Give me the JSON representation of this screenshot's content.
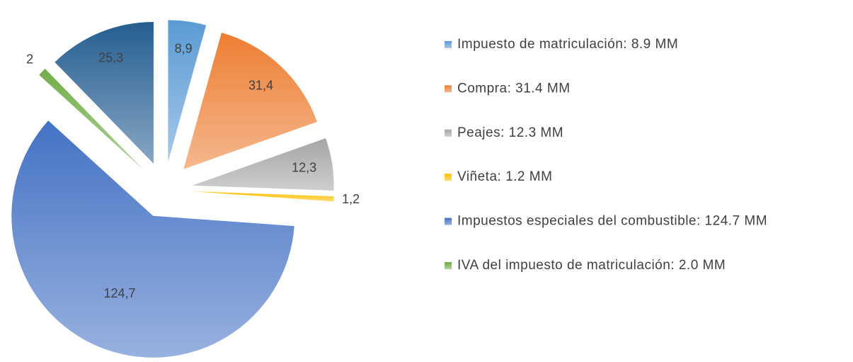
{
  "chart_data": {
    "type": "pie",
    "categories": [
      "Impuesto de matriculación: 8.9 MM",
      "Compra: 31.4 MM",
      "Peajes: 12.3 MM",
      "Viñeta: 1.2 MM",
      "Impuestos especiales del combustible: 124.7 MM",
      "IVA del impuesto de matriculación: 2.0 MM",
      null
    ],
    "values": [
      8.9,
      31.4,
      12.3,
      1.2,
      124.7,
      2,
      25.3
    ],
    "value_labels": [
      "8,9",
      "31,4",
      "12,3",
      "1,2",
      "124,7",
      "2",
      "25,3"
    ],
    "colors": [
      "#5b9bd5",
      "#ed7d31",
      "#a5a5a5",
      "#ffc000",
      "#4472c4",
      "#70ad47",
      "#255e91"
    ],
    "legend": "right"
  }
}
